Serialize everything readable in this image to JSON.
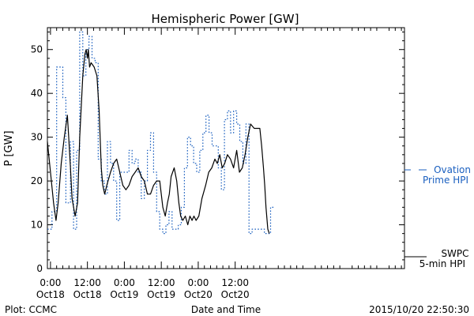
{
  "chart_data": {
    "type": "line",
    "title": "Hemispheric Power [GW]",
    "xlabel": "Date and Time",
    "ylabel": "P [GW]",
    "x_unit": "hours since Oct18 0:00",
    "xlim": [
      -1,
      115
    ],
    "ylim": [
      0,
      55
    ],
    "y_ticks": [
      0,
      10,
      20,
      30,
      40,
      50
    ],
    "x_ticks": [
      {
        "x": 0,
        "time": "0:00",
        "date": "Oct18"
      },
      {
        "x": 12,
        "time": "12:00",
        "date": "Oct18"
      },
      {
        "x": 24,
        "time": "0:00",
        "date": "Oct19"
      },
      {
        "x": 36,
        "time": "12:00",
        "date": "Oct19"
      },
      {
        "x": 48,
        "time": "0:00",
        "date": "Oct20"
      },
      {
        "x": 60,
        "time": "12:00",
        "date": "Oct20"
      }
    ],
    "grid": false,
    "legend_position": "right",
    "series": [
      {
        "name": "SWPC 5-min HPI",
        "legend_lines": [
          "SWPC",
          "5-min HPI"
        ],
        "color": "#000000",
        "style": "solid",
        "x": [
          -1,
          0,
          1,
          1.8,
          2.5,
          3.5,
          4.5,
          5.5,
          6,
          6.5,
          7,
          8,
          8.8,
          9.5,
          10.5,
          11.2,
          11.6,
          12,
          12.3,
          12.7,
          13.2,
          14.2,
          15.1,
          15.8,
          16.5,
          17,
          17.6,
          18.3,
          19.5,
          20.5,
          21.5,
          22.5,
          23.5,
          24.5,
          25.5,
          26.5,
          27.5,
          28.5,
          29.5,
          30.5,
          31.5,
          32.5,
          33.5,
          34.5,
          35.5,
          36.5,
          37.3,
          38,
          38.6,
          39.2,
          40.2,
          41,
          41.7,
          42.3,
          43,
          43.8,
          44.6,
          45.3,
          46,
          46.6,
          47.3,
          48.2,
          49.2,
          50.4,
          51.4,
          52.4,
          53.4,
          54.2,
          55,
          55.8,
          56.6,
          57.5,
          58.5,
          59.5,
          60.5,
          61.4,
          62.3,
          63.2,
          64.1,
          65,
          66.2,
          67.2,
          68,
          68.6,
          69.2,
          69.6,
          70,
          70.6,
          71.1
        ],
        "y": [
          29,
          22,
          15,
          11,
          15,
          24,
          30,
          35,
          29,
          23,
          16,
          12,
          15,
          30,
          44,
          49,
          50,
          48,
          50,
          46,
          47,
          46,
          44,
          36,
          23,
          19,
          17,
          19,
          22,
          24,
          25,
          22,
          19,
          18,
          19,
          21,
          22,
          23,
          21,
          20,
          17,
          17,
          19,
          20,
          20,
          14,
          12,
          15,
          17,
          21,
          23,
          20,
          15,
          12,
          11,
          12,
          10,
          12,
          11,
          12,
          11,
          12,
          16,
          19,
          22,
          23,
          25,
          24,
          26,
          23,
          24,
          26,
          25,
          23,
          27,
          22,
          23,
          26,
          30,
          33,
          32,
          32,
          32,
          28,
          23,
          19,
          14,
          9,
          8
        ]
      },
      {
        "name": "Ovation Prime HPI",
        "legend_lines": [
          "Ovation",
          "Prime HPI"
        ],
        "color": "#1a5fbf",
        "style": "dotted",
        "x": [
          -1,
          0.5,
          2,
          4,
          5,
          6.5,
          7.5,
          8.5,
          9.5,
          10.5,
          11.5,
          12.5,
          13.5,
          14.5,
          15.5,
          16.5,
          17.5,
          18.5,
          19.5,
          20.5,
          21.5,
          22.5,
          23.5,
          24.5,
          25.5,
          26.5,
          27.5,
          28.5,
          29.5,
          30.5,
          31.5,
          32.5,
          33.5,
          34.5,
          35.5,
          36.5,
          37.5,
          38.5,
          39.5,
          40.5,
          41.5,
          42.5,
          43.5,
          44.5,
          45.5,
          46.5,
          47.5,
          48.5,
          49.5,
          50.5,
          51.5,
          52.5,
          53.5,
          54.5,
          55.5,
          56.5,
          57.5,
          58.5,
          59.5,
          60.5,
          61.5,
          62.5,
          63.5,
          64.5,
          65.5,
          66.5,
          67.5,
          68.5,
          69.5,
          70.5,
          71.5
        ],
        "y": [
          9,
          13,
          46,
          39,
          15,
          29,
          9,
          27,
          54,
          44,
          50,
          53,
          48,
          47,
          25,
          20,
          17,
          29,
          24,
          20,
          11,
          22,
          22,
          22,
          27,
          24,
          25,
          22,
          16,
          20,
          27,
          31,
          22,
          13,
          9,
          8,
          10,
          13,
          9,
          9,
          10,
          14,
          23,
          30,
          28,
          24,
          22,
          27,
          31,
          35,
          31,
          28,
          28,
          23,
          18,
          34,
          36,
          31,
          36,
          33,
          29,
          24,
          33,
          8,
          9,
          9,
          9,
          9,
          8,
          8,
          14
        ]
      }
    ]
  },
  "footer": {
    "left": "Plot: CCMC",
    "center": "Date and Time",
    "right": "2015/10/20 22:50:30"
  }
}
